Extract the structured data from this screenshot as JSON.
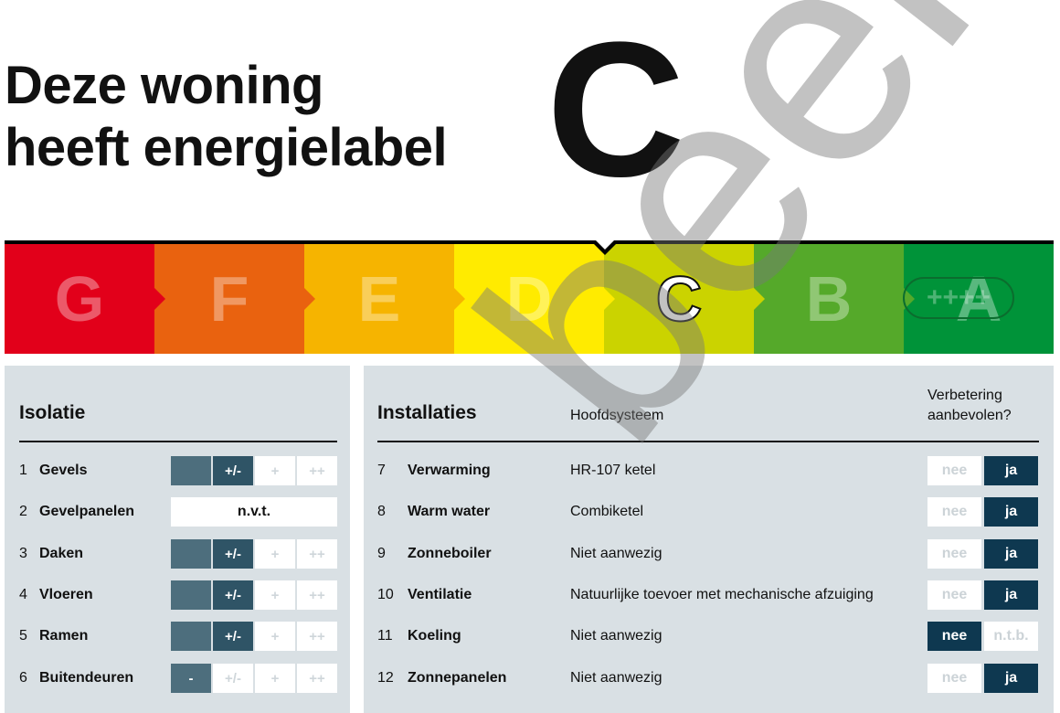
{
  "title_line1": "Deze woning",
  "title_line2": "heeft energielabel",
  "label": "C",
  "scale": [
    {
      "letter": "G",
      "color": "#e2001a"
    },
    {
      "letter": "F",
      "color": "#e9620f"
    },
    {
      "letter": "E",
      "color": "#f6b400"
    },
    {
      "letter": "D",
      "color": "#ffeb00"
    },
    {
      "letter": "C",
      "color": "#cbd300",
      "active": true
    },
    {
      "letter": "B",
      "color": "#55a92a"
    },
    {
      "letter": "A",
      "color": "#009339"
    }
  ],
  "a_plus": "++++",
  "isolatie": {
    "heading": "Isolatie",
    "levels": [
      "-",
      "+/-",
      "+",
      "++"
    ],
    "rows": [
      {
        "num": "1",
        "name": "Gevels",
        "value": "+/-"
      },
      {
        "num": "2",
        "name": "Gevelpanelen",
        "value": "n.v.t."
      },
      {
        "num": "3",
        "name": "Daken",
        "value": "+/-"
      },
      {
        "num": "4",
        "name": "Vloeren",
        "value": "+/-"
      },
      {
        "num": "5",
        "name": "Ramen",
        "value": "+/-"
      },
      {
        "num": "6",
        "name": "Buitendeuren",
        "value": "-"
      }
    ]
  },
  "installaties": {
    "heading": "Installaties",
    "col_system": "Hoofdsysteem",
    "col_improve_1": "Verbetering",
    "col_improve_2": "aanbevolen?",
    "rows": [
      {
        "num": "7",
        "name": "Verwarming",
        "system": "HR-107 ketel",
        "opt1": "nee",
        "opt2": "ja",
        "selected": "ja"
      },
      {
        "num": "8",
        "name": "Warm water",
        "system": "Combiketel",
        "opt1": "nee",
        "opt2": "ja",
        "selected": "ja"
      },
      {
        "num": "9",
        "name": "Zonneboiler",
        "system": "Niet aanwezig",
        "opt1": "nee",
        "opt2": "ja",
        "selected": "ja"
      },
      {
        "num": "10",
        "name": "Ventilatie",
        "system": "Natuurlijke toevoer met mechanische afzuiging",
        "opt1": "nee",
        "opt2": "ja",
        "selected": "ja"
      },
      {
        "num": "11",
        "name": "Koeling",
        "system": "Niet aanwezig",
        "opt1": "nee",
        "opt2": "n.t.b.",
        "selected": "nee"
      },
      {
        "num": "12",
        "name": "Zonnepanelen",
        "system": "Niet aanwezig",
        "opt1": "nee",
        "opt2": "ja",
        "selected": "ja"
      }
    ]
  },
  "watermark": "beeld",
  "colors": {
    "panel": "#d9e0e4",
    "selected": "#0e3850",
    "level_filled": "#4d6e7d",
    "level_current": "#2f5466"
  }
}
